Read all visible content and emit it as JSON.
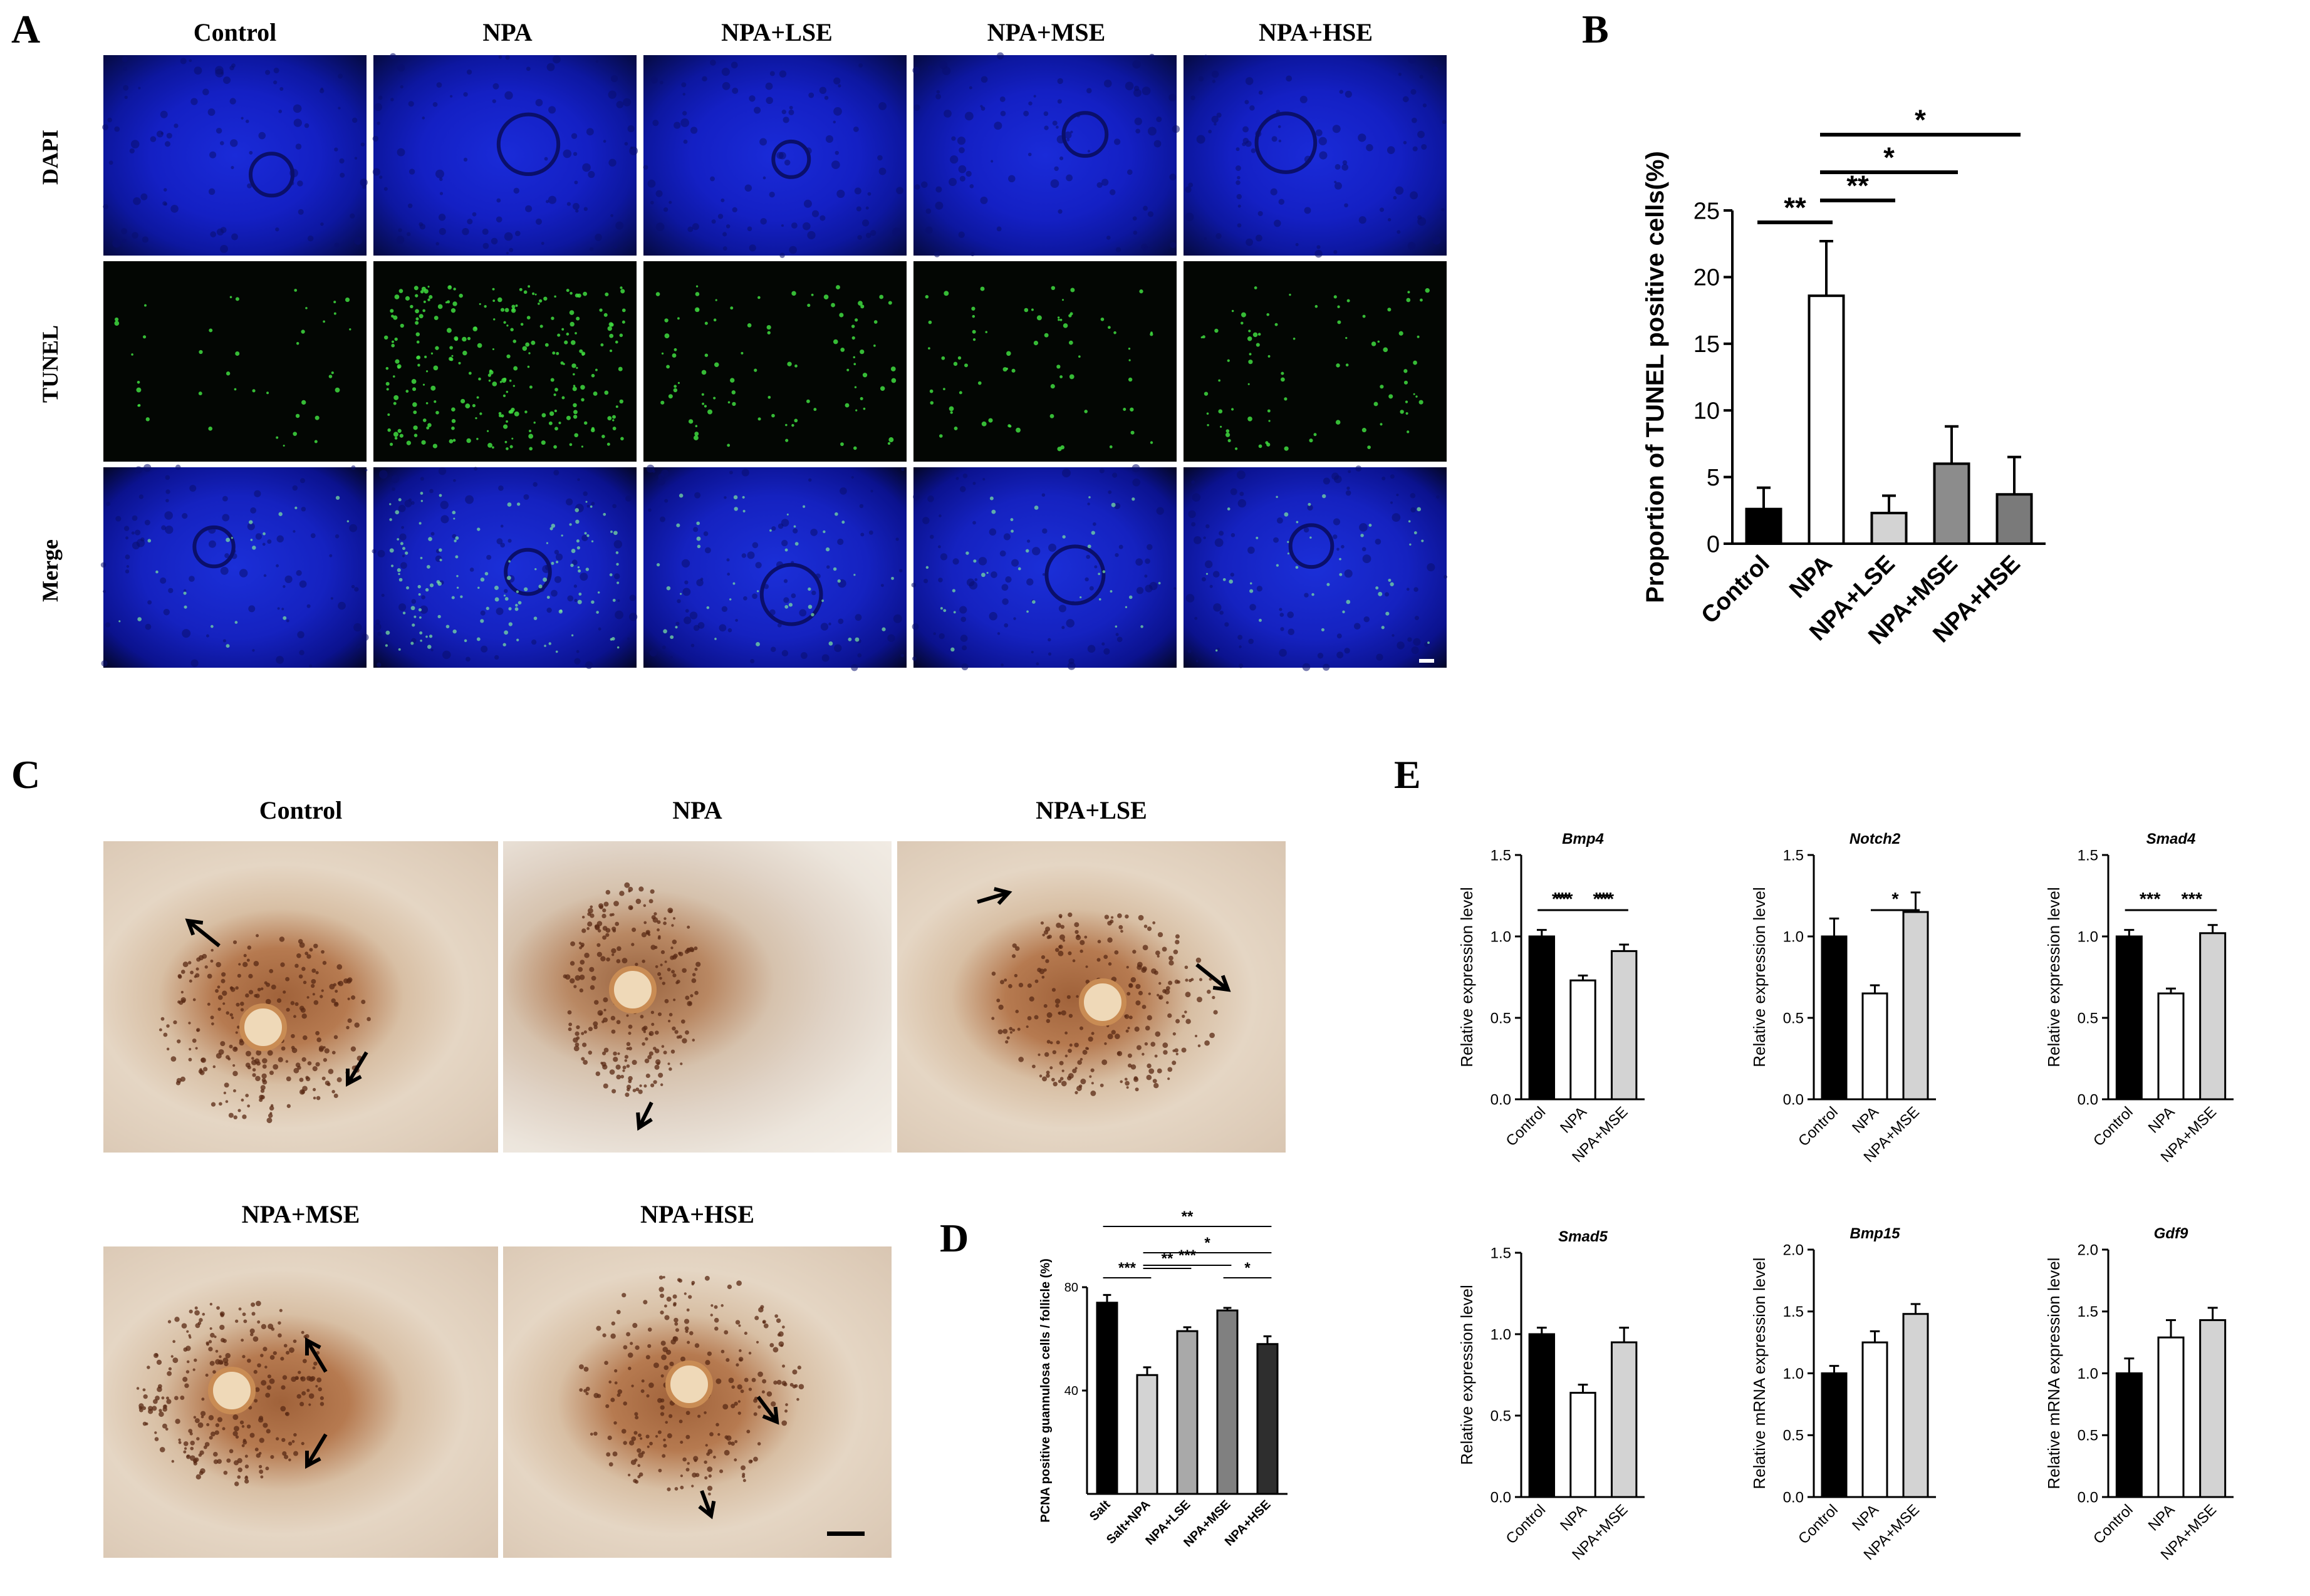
{
  "panels": {
    "A": {
      "letter": "A",
      "groups": [
        "Control",
        "NPA",
        "NPA+LSE",
        "NPA+MSE",
        "NPA+HSE"
      ],
      "rows": [
        "DAPI",
        "TUNEL",
        "Merge"
      ]
    },
    "C": {
      "letter": "C",
      "groups": [
        "Control",
        "NPA",
        "NPA+LSE",
        "NPA+MSE",
        "NPA+HSE"
      ]
    },
    "D": {
      "letter": "D"
    },
    "E": {
      "letter": "E"
    }
  },
  "chart_data": [
    {
      "id": "B",
      "letter": "B",
      "type": "bar",
      "categories": [
        "Control",
        "NPA",
        "NPA+LSE",
        "NPA+MSE",
        "NPA+HSE"
      ],
      "values": [
        2.6,
        18.6,
        2.3,
        6.0,
        3.7
      ],
      "errors": [
        1.6,
        4.1,
        1.3,
        2.8,
        2.8
      ],
      "fills": [
        "#000000",
        "#ffffff",
        "#d3d3d3",
        "#8c8c8c",
        "#7a7a7a"
      ],
      "ylabel": "Proportion of TUNEL positive cells(%)",
      "ylim": [
        0,
        25
      ],
      "yticks": [
        0,
        5,
        10,
        15,
        20,
        25
      ],
      "significance": [
        {
          "from": 0,
          "to": 1,
          "label": "**"
        },
        {
          "from": 1,
          "to": 2,
          "label": "**"
        },
        {
          "from": 1,
          "to": 3,
          "label": "*"
        },
        {
          "from": 1,
          "to": 4,
          "label": "*"
        }
      ]
    },
    {
      "id": "D",
      "type": "bar",
      "categories": [
        "Salt",
        "Salt+NPA",
        "NPA+LSE",
        "NPA+MSE",
        "NPA+HSE"
      ],
      "values": [
        74,
        46,
        63,
        71,
        58
      ],
      "errors": [
        3,
        3,
        1.5,
        1,
        3
      ],
      "fills": [
        "#000000",
        "#d3d3d3",
        "#a9a9a9",
        "#808080",
        "#2e2e2e"
      ],
      "ylabel": "PCNA positive guannulosa cells / follicle (%)",
      "ylim": [
        0,
        80
      ],
      "yticks": [
        40,
        80
      ],
      "significance": [
        {
          "from": 0,
          "to": 1,
          "label": "***"
        },
        {
          "from": 1,
          "to": 2,
          "label": "**"
        },
        {
          "from": 1,
          "to": 3,
          "label": "***"
        },
        {
          "from": 3,
          "to": 4,
          "label": "*"
        },
        {
          "from": 1,
          "to": 4,
          "label": "*"
        },
        {
          "from": 0,
          "to": 4,
          "label": "**"
        }
      ]
    },
    {
      "id": "E1",
      "type": "bar",
      "title": "Bmp4",
      "categories": [
        "Control",
        "NPA",
        "NPA+MSE"
      ],
      "values": [
        1.0,
        0.73,
        0.91
      ],
      "errors": [
        0.04,
        0.03,
        0.04
      ],
      "fills": [
        "#000000",
        "#ffffff",
        "#d3d3d3"
      ],
      "ylabel": "Relative expression level",
      "ylim": [
        0,
        1.5
      ],
      "yticks": [
        0,
        0.5,
        1.0,
        1.5
      ],
      "significance": [
        {
          "from": 0,
          "to": 1,
          "label": "**"
        },
        {
          "from": 1,
          "to": 2,
          "label": "***"
        }
      ]
    },
    {
      "id": "E2",
      "type": "bar",
      "title": "Notch2",
      "categories": [
        "Control",
        "NPA",
        "NPA+MSE"
      ],
      "values": [
        1.0,
        0.65,
        1.15
      ],
      "errors": [
        0.11,
        0.05,
        0.12
      ],
      "fills": [
        "#000000",
        "#ffffff",
        "#d3d3d3"
      ],
      "ylabel": "Relative expression level",
      "ylim": [
        0,
        1.5
      ],
      "yticks": [
        0,
        0.5,
        1.0,
        1.5
      ],
      "significance": [
        {
          "from": 1,
          "to": 2,
          "label": "*"
        }
      ]
    },
    {
      "id": "E3",
      "type": "bar",
      "title": "Smad4",
      "categories": [
        "Control",
        "NPA",
        "NPA+MSE"
      ],
      "values": [
        1.0,
        0.65,
        1.02
      ],
      "errors": [
        0.04,
        0.03,
        0.05
      ],
      "fills": [
        "#000000",
        "#ffffff",
        "#d3d3d3"
      ],
      "ylabel": "Relative expression level",
      "ylim": [
        0,
        1.5
      ],
      "yticks": [
        0,
        0.5,
        1.0,
        1.5
      ],
      "significance": [
        {
          "from": 0,
          "to": 1,
          "label": "***"
        },
        {
          "from": 1,
          "to": 2,
          "label": "***"
        }
      ]
    },
    {
      "id": "E4",
      "type": "bar",
      "title": "Smad5",
      "categories": [
        "Control",
        "NPA",
        "NPA+MSE"
      ],
      "values": [
        1.0,
        0.64,
        0.95
      ],
      "errors": [
        0.04,
        0.05,
        0.09
      ],
      "fills": [
        "#000000",
        "#ffffff",
        "#d3d3d3"
      ],
      "ylabel": "Relative expression level",
      "ylim": [
        0,
        1.5
      ],
      "yticks": [
        0,
        0.5,
        1.0,
        1.5
      ],
      "significance": [
        {
          "from": 0,
          "to": 1,
          "label": "***"
        },
        {
          "from": 1,
          "to": 2,
          "label": "**"
        }
      ]
    },
    {
      "id": "E5",
      "type": "bar",
      "title": "Bmp15",
      "categories": [
        "Control",
        "NPA",
        "NPA+MSE"
      ],
      "values": [
        1.0,
        1.25,
        1.48
      ],
      "errors": [
        0.06,
        0.09,
        0.08
      ],
      "fills": [
        "#000000",
        "#ffffff",
        "#d3d3d3"
      ],
      "ylabel": "Relative mRNA expression level",
      "ylim": [
        0,
        2.0
      ],
      "yticks": [
        0,
        0.5,
        1.0,
        1.5,
        2.0
      ],
      "significance": []
    },
    {
      "id": "E6",
      "type": "bar",
      "title": "Gdf9",
      "categories": [
        "Control",
        "NPA",
        "NPA+MSE"
      ],
      "values": [
        1.0,
        1.29,
        1.43
      ],
      "errors": [
        0.12,
        0.14,
        0.1
      ],
      "fills": [
        "#000000",
        "#ffffff",
        "#d3d3d3"
      ],
      "ylabel": "Relative mRNA expression level",
      "ylim": [
        0,
        2.0
      ],
      "yticks": [
        0,
        0.5,
        1.0,
        1.5,
        2.0
      ],
      "significance": []
    }
  ]
}
